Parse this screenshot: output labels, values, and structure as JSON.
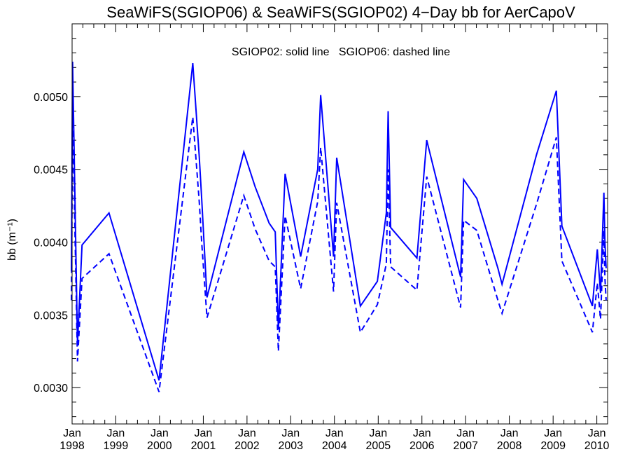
{
  "chart_data": {
    "type": "line",
    "title": "SeaWiFS(SGIOP06) & SeaWiFS(SGIOP02) 4−Day bb for AerCapoV",
    "annotation": "SGIOP02: solid line   SGIOP06: dashed line",
    "xlabel": "",
    "ylabel": "bb (m⁻¹)",
    "ylim": [
      0.00275,
      0.0055
    ],
    "xlim": [
      "1998-01-01",
      "2010-04-01"
    ],
    "yticks": [
      0.003,
      0.0035,
      0.004,
      0.0045,
      0.005
    ],
    "ytick_labels": [
      "0.0030",
      "0.0035",
      "0.0040",
      "0.0045",
      "0.0050"
    ],
    "xticks": [
      {
        "month": "Jan",
        "year": "1998",
        "date": "1998-01-01"
      },
      {
        "month": "Jan",
        "year": "1999",
        "date": "1999-01-01"
      },
      {
        "month": "Jan",
        "year": "2000",
        "date": "2000-01-01"
      },
      {
        "month": "Jan",
        "year": "2001",
        "date": "2001-01-01"
      },
      {
        "month": "Jan",
        "year": "2002",
        "date": "2002-01-01"
      },
      {
        "month": "Jan",
        "year": "2003",
        "date": "2003-01-01"
      },
      {
        "month": "Jan",
        "year": "2004",
        "date": "2004-01-01"
      },
      {
        "month": "Jan",
        "year": "2005",
        "date": "2005-01-01"
      },
      {
        "month": "Jan",
        "year": "2006",
        "date": "2006-01-01"
      },
      {
        "month": "Jan",
        "year": "2007",
        "date": "2007-01-01"
      },
      {
        "month": "Jan",
        "year": "2008",
        "date": "2008-01-01"
      },
      {
        "month": "Jan",
        "year": "2009",
        "date": "2009-01-01"
      },
      {
        "month": "Jan",
        "year": "2010",
        "date": "2010-01-01"
      }
    ],
    "grid": false,
    "color": "#0000ff",
    "series": [
      {
        "name": "SGIOP02",
        "style": "solid",
        "x": [
          "1997-12-26",
          "1998-01-05",
          "1998-02-15",
          "1998-03-25",
          "1998-11-05",
          "1999-12-28",
          "2000-10-05",
          "2000-11-28",
          "2000-12-18",
          "2001-02-01",
          "2001-12-05",
          "2002-03-10",
          "2002-07-05",
          "2002-08-25",
          "2002-09-20",
          "2002-11-15",
          "2003-03-25",
          "2003-08-15",
          "2003-09-08",
          "2003-12-25",
          "2004-01-20",
          "2004-08-05",
          "2004-12-25",
          "2005-03-10",
          "2005-03-25",
          "2005-04-15",
          "2005-11-20",
          "2006-02-10",
          "2006-11-20",
          "2006-12-15",
          "2007-04-05",
          "2007-09-28",
          "2007-11-01",
          "2008-08-15",
          "2009-01-28",
          "2009-03-15",
          "2009-11-25",
          "2010-01-05",
          "2010-02-01",
          "2010-03-01",
          "2010-03-10",
          "2010-03-20"
        ],
        "values": [
          0.0038,
          0.00524,
          0.0033,
          0.00398,
          0.0042,
          0.00305,
          0.00523,
          0.00459,
          0.0043,
          0.00362,
          0.00462,
          0.00438,
          0.00413,
          0.00407,
          0.0034,
          0.00447,
          0.0039,
          0.0045,
          0.00501,
          0.0039,
          0.00458,
          0.00356,
          0.00373,
          0.0042,
          0.0049,
          0.0041,
          0.00389,
          0.0047,
          0.00376,
          0.00443,
          0.0043,
          0.00382,
          0.00371,
          0.0046,
          0.00504,
          0.00411,
          0.00356,
          0.00395,
          0.00365,
          0.00434,
          0.004,
          0.00382
        ]
      },
      {
        "name": "SGIOP06",
        "style": "dashed",
        "x": [
          "1997-12-26",
          "1998-01-05",
          "1998-02-15",
          "1998-03-25",
          "1998-11-05",
          "1999-12-28",
          "2000-10-05",
          "2000-11-28",
          "2000-12-18",
          "2001-02-01",
          "2001-12-05",
          "2002-03-10",
          "2002-07-05",
          "2002-08-25",
          "2002-09-20",
          "2002-11-15",
          "2003-03-25",
          "2003-08-15",
          "2003-09-08",
          "2003-12-25",
          "2004-01-20",
          "2004-08-05",
          "2004-12-25",
          "2005-03-10",
          "2005-03-25",
          "2005-04-15",
          "2005-11-20",
          "2006-02-10",
          "2006-11-20",
          "2006-12-15",
          "2007-04-05",
          "2007-09-28",
          "2007-11-01",
          "2008-08-15",
          "2009-01-28",
          "2009-03-15",
          "2009-11-25",
          "2010-01-05",
          "2010-02-01",
          "2010-03-01",
          "2010-03-10",
          "2010-03-20"
        ],
        "values": [
          0.0036,
          0.0049,
          0.00318,
          0.00375,
          0.00392,
          0.00297,
          0.00486,
          0.00428,
          0.004,
          0.00348,
          0.00432,
          0.00409,
          0.00387,
          0.00383,
          0.00325,
          0.00418,
          0.00368,
          0.00428,
          0.00465,
          0.00366,
          0.00427,
          0.00338,
          0.00357,
          0.00385,
          0.0045,
          0.00383,
          0.00367,
          0.00445,
          0.00355,
          0.00415,
          0.00408,
          0.0036,
          0.00351,
          0.00426,
          0.00472,
          0.00387,
          0.00338,
          0.00372,
          0.00347,
          0.00408,
          0.00375,
          0.0036
        ]
      }
    ]
  }
}
